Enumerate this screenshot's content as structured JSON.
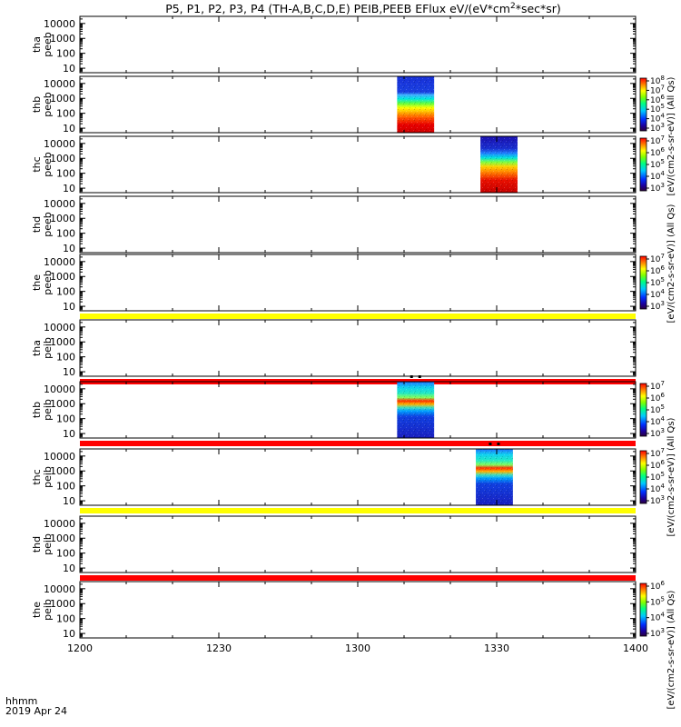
{
  "chart_data": {
    "type": "heatmap",
    "title": "P5, P1, P2, P3, P4 (TH-A,B,C,D,E) PEIB,PEEB EFlux eV/(eV*cm^2*sec*sr)",
    "title_parts": {
      "before_sup": "P5, P1, P2, P3, P4 (TH-A,B,C,D,E) PEIB,PEEB EFlux eV/(eV*cm",
      "sup": "2",
      "after_sup": "*sec*sr)"
    },
    "x_axis": {
      "range_minutes": [
        0,
        120
      ],
      "tick_labels": [
        "1200",
        "1230",
        "1300",
        "1330",
        "1400"
      ],
      "tick_values_minutes": [
        0,
        30,
        60,
        90,
        120
      ],
      "label_line1": "hhmm",
      "label_line2": "2019 Apr 24"
    },
    "y_axis": {
      "scale": "log",
      "range": [
        5,
        30000
      ],
      "tick_labels": [
        "10",
        "100",
        "1000",
        "10000"
      ],
      "tick_values": [
        10,
        100,
        1000,
        10000
      ]
    },
    "panels": [
      {
        "probe": "tha",
        "product": "peeb",
        "label": [
          "tha",
          "peeb"
        ],
        "blocks": [],
        "bar_below": null
      },
      {
        "probe": "thb",
        "product": "peeb",
        "label": [
          "thb",
          "peeb"
        ],
        "blocks": [
          {
            "start_minute": 68.5,
            "end_minute": 76.5
          }
        ],
        "bar_below": null
      },
      {
        "probe": "thc",
        "product": "peeb",
        "label": [
          "thc",
          "peeb"
        ],
        "blocks": [
          {
            "start_minute": 86.5,
            "end_minute": 94.5
          }
        ],
        "bar_below": null
      },
      {
        "probe": "thd",
        "product": "peeb",
        "label": [
          "thd",
          "peeb"
        ],
        "blocks": [],
        "bar_below": null
      },
      {
        "probe": "the",
        "product": "peeb",
        "label": [
          "the",
          "peeb"
        ],
        "blocks": [],
        "bar_below": "#ffff00"
      },
      {
        "probe": "tha",
        "product": "peib",
        "label": [
          "tha",
          "peib"
        ],
        "blocks": [],
        "bar_below": "#ff0000"
      },
      {
        "probe": "thb",
        "product": "peib",
        "label": [
          "thb",
          "peib"
        ],
        "blocks": [
          {
            "start_minute": 68.5,
            "end_minute": 76.5
          }
        ],
        "bar_below": "#ff0000"
      },
      {
        "probe": "thc",
        "product": "peib",
        "label": [
          "thc",
          "peib"
        ],
        "blocks": [
          {
            "start_minute": 85.5,
            "end_minute": 93.5
          }
        ],
        "bar_below": "#ffff00"
      },
      {
        "probe": "thd",
        "product": "peib",
        "label": [
          "thd",
          "peib"
        ],
        "blocks": [],
        "bar_below": "#ff0000"
      },
      {
        "probe": "the",
        "product": "peib",
        "label": [
          "the",
          "peib"
        ],
        "blocks": [],
        "bar_below": null
      }
    ],
    "colorbars": [
      {
        "panel": "thb-peeb",
        "tick_labels": [
          "10^3",
          "10^4",
          "10^5",
          "10^6",
          "10^7",
          "10^8"
        ]
      },
      {
        "panel": "thc-peeb",
        "tick_labels": [
          "10^3",
          "10^4",
          "10^5",
          "10^6",
          "10^7"
        ]
      },
      {
        "panel": "the-peeb",
        "tick_labels": [
          "10^3",
          "10^4",
          "10^5",
          "10^6",
          "10^7"
        ]
      },
      {
        "panel": "thb-peib",
        "tick_labels": [
          "10^3",
          "10^4",
          "10^5",
          "10^6",
          "10^7"
        ]
      },
      {
        "panel": "thc-peib",
        "tick_labels": [
          "10^3",
          "10^4",
          "10^5",
          "10^6",
          "10^7"
        ]
      },
      {
        "panel": "the-peib",
        "tick_labels": [
          "10^3",
          "10^4",
          "10^5",
          "10^6"
        ]
      }
    ],
    "side_labels": {
      "top": "[eV/(cm2-s-sr-eV)] (All Qs)",
      "upper_middle": "[eV/(cm2-s-sr-eV)] (All Qs)",
      "lower_middle": "[eV/(cm2-s-sr-eV)] (All Qs)",
      "bottom": "[eV/(cm2-s-sr-eV)] (All Qs)"
    },
    "grid": false
  }
}
